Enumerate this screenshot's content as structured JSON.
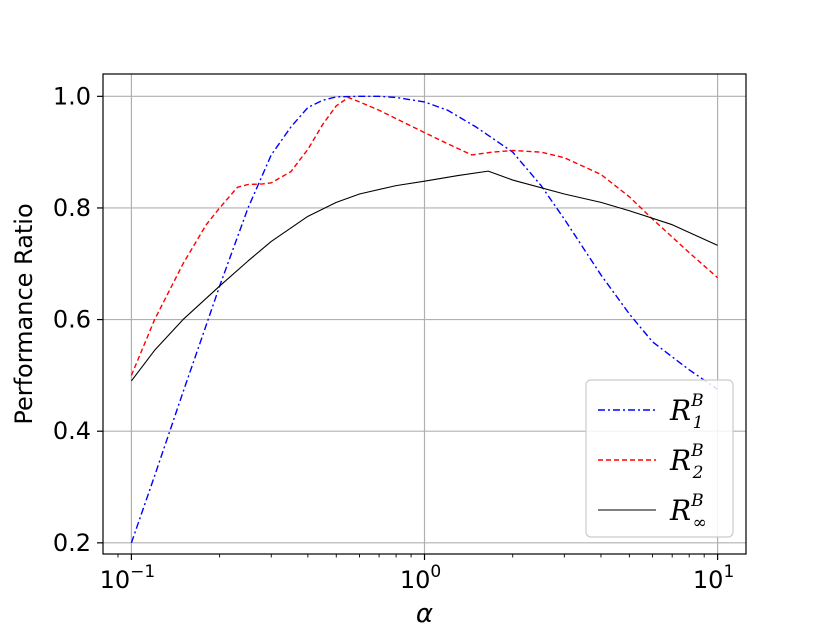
{
  "chart_data": {
    "type": "line",
    "title": "",
    "xlabel": "α",
    "ylabel": "Performance Ratio",
    "xscale": "log",
    "xlim": [
      0.08,
      12.5
    ],
    "ylim": [
      0.18,
      1.04
    ],
    "grid": true,
    "legend_position": "lower-right",
    "x_ticks": [
      {
        "value": 0.1,
        "base": "10",
        "exp": "−1"
      },
      {
        "value": 1,
        "base": "10",
        "exp": "0"
      },
      {
        "value": 10,
        "base": "10",
        "exp": "1"
      }
    ],
    "y_ticks": [
      {
        "value": 0.2,
        "label": "0.2"
      },
      {
        "value": 0.4,
        "label": "0.4"
      },
      {
        "value": 0.6,
        "label": "0.6"
      },
      {
        "value": 0.8,
        "label": "0.8"
      },
      {
        "value": 1.0,
        "label": "1.0"
      }
    ],
    "series": [
      {
        "id": "r1",
        "symbol": "R",
        "sup": "B",
        "sub": "1",
        "color": "#0000ff",
        "dash": "7 3 2 3",
        "width": 1.4,
        "x": [
          0.1,
          0.12,
          0.15,
          0.18,
          0.2,
          0.25,
          0.3,
          0.35,
          0.4,
          0.45,
          0.5,
          0.6,
          0.7,
          0.8,
          1.0,
          1.2,
          1.5,
          2.0,
          2.5,
          3.0,
          4.0,
          5.0,
          6.0,
          8.0,
          10.0
        ],
        "y": [
          0.2,
          0.32,
          0.47,
          0.59,
          0.66,
          0.8,
          0.895,
          0.945,
          0.98,
          0.993,
          0.999,
          1.0,
          1.0,
          0.998,
          0.99,
          0.975,
          0.945,
          0.9,
          0.84,
          0.78,
          0.68,
          0.61,
          0.56,
          0.51,
          0.475
        ]
      },
      {
        "id": "r2",
        "symbol": "R",
        "sup": "B",
        "sub": "2",
        "color": "#ff0000",
        "dash": "5 3",
        "width": 1.4,
        "x": [
          0.1,
          0.12,
          0.15,
          0.18,
          0.2,
          0.23,
          0.25,
          0.28,
          0.3,
          0.35,
          0.4,
          0.45,
          0.5,
          0.55,
          0.6,
          0.7,
          0.8,
          1.0,
          1.2,
          1.45,
          1.7,
          2.0,
          2.5,
          3.0,
          4.0,
          5.0,
          6.0,
          8.0,
          10.0
        ],
        "y": [
          0.5,
          0.6,
          0.7,
          0.77,
          0.8,
          0.837,
          0.842,
          0.843,
          0.845,
          0.865,
          0.905,
          0.95,
          0.983,
          0.998,
          0.99,
          0.975,
          0.96,
          0.935,
          0.915,
          0.895,
          0.9,
          0.903,
          0.9,
          0.89,
          0.86,
          0.82,
          0.78,
          0.72,
          0.675
        ]
      },
      {
        "id": "rinf",
        "symbol": "R",
        "sup": "B",
        "sub": "∞",
        "color": "#000000",
        "dash": "",
        "width": 1.1,
        "x": [
          0.1,
          0.12,
          0.15,
          0.2,
          0.25,
          0.3,
          0.4,
          0.5,
          0.6,
          0.8,
          1.0,
          1.3,
          1.65,
          2.0,
          3.0,
          4.0,
          5.0,
          7.0,
          10.0
        ],
        "y": [
          0.49,
          0.545,
          0.6,
          0.66,
          0.705,
          0.74,
          0.785,
          0.81,
          0.825,
          0.84,
          0.848,
          0.858,
          0.866,
          0.85,
          0.825,
          0.81,
          0.795,
          0.77,
          0.733
        ]
      }
    ]
  }
}
